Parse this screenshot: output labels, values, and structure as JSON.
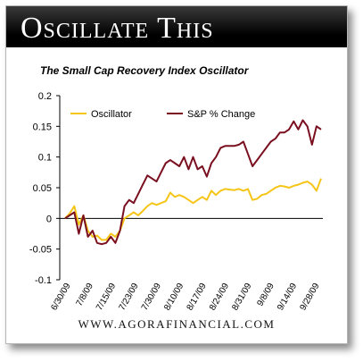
{
  "banner": {
    "title": "Oscillate This"
  },
  "footer": {
    "url": "WWW.AGORAFINANCIAL.COM"
  },
  "colors": {
    "oscillator": "#f5c518",
    "sp_change": "#7a0f1f",
    "banner": "#000000"
  },
  "chart_data": {
    "type": "line",
    "title": "The Small Cap Recovery Index Oscillator",
    "xlabel": "",
    "ylabel": "",
    "ylim": [
      -0.1,
      0.2
    ],
    "yticks": [
      -0.1,
      -0.05,
      0,
      0.05,
      0.1,
      0.15,
      0.2
    ],
    "ytick_labels": [
      "-0.1",
      "-0.05",
      "0",
      "0.05",
      "0.1",
      "0.15",
      "0.2"
    ],
    "xtick_labels": [
      "6/30/09",
      "7/8/09",
      "7/15/09",
      "7/23/09",
      "7/30/09",
      "8/10/09",
      "8/17/09",
      "8/24/09",
      "8/31/09",
      "9/8/09",
      "9/14/09",
      "9/28/09"
    ],
    "grid": false,
    "legend": "top-left",
    "series": [
      {
        "name": "Oscillator",
        "color": "#f5c518",
        "values": [
          0.0,
          0.008,
          0.02,
          -0.01,
          0.005,
          -0.02,
          -0.03,
          -0.028,
          -0.035,
          -0.035,
          -0.025,
          -0.03,
          -0.02,
          0.0,
          0.005,
          0.01,
          0.005,
          0.012,
          0.02,
          0.025,
          0.022,
          0.025,
          0.028,
          0.042,
          0.035,
          0.038,
          0.035,
          0.03,
          0.025,
          0.03,
          0.035,
          0.03,
          0.045,
          0.038,
          0.045,
          0.048,
          0.047,
          0.046,
          0.048,
          0.045,
          0.048,
          0.03,
          0.032,
          0.038,
          0.04,
          0.045,
          0.05,
          0.053,
          0.052,
          0.05,
          0.053,
          0.055,
          0.058,
          0.06,
          0.055,
          0.045,
          0.065
        ]
      },
      {
        "name": "S&P % Change",
        "color": "#7a0f1f",
        "values": [
          0.0,
          0.005,
          0.01,
          -0.025,
          0.005,
          -0.03,
          -0.02,
          -0.04,
          -0.042,
          -0.04,
          -0.03,
          -0.04,
          -0.02,
          0.02,
          0.03,
          0.025,
          0.04,
          0.055,
          0.07,
          0.065,
          0.06,
          0.075,
          0.09,
          0.095,
          0.09,
          0.085,
          0.1,
          0.08,
          0.1,
          0.08,
          0.085,
          0.068,
          0.09,
          0.1,
          0.115,
          0.118,
          0.118,
          0.118,
          0.12,
          0.125,
          0.105,
          0.085,
          0.095,
          0.105,
          0.115,
          0.125,
          0.13,
          0.14,
          0.14,
          0.145,
          0.158,
          0.145,
          0.16,
          0.15,
          0.12,
          0.15,
          0.145
        ]
      }
    ]
  }
}
